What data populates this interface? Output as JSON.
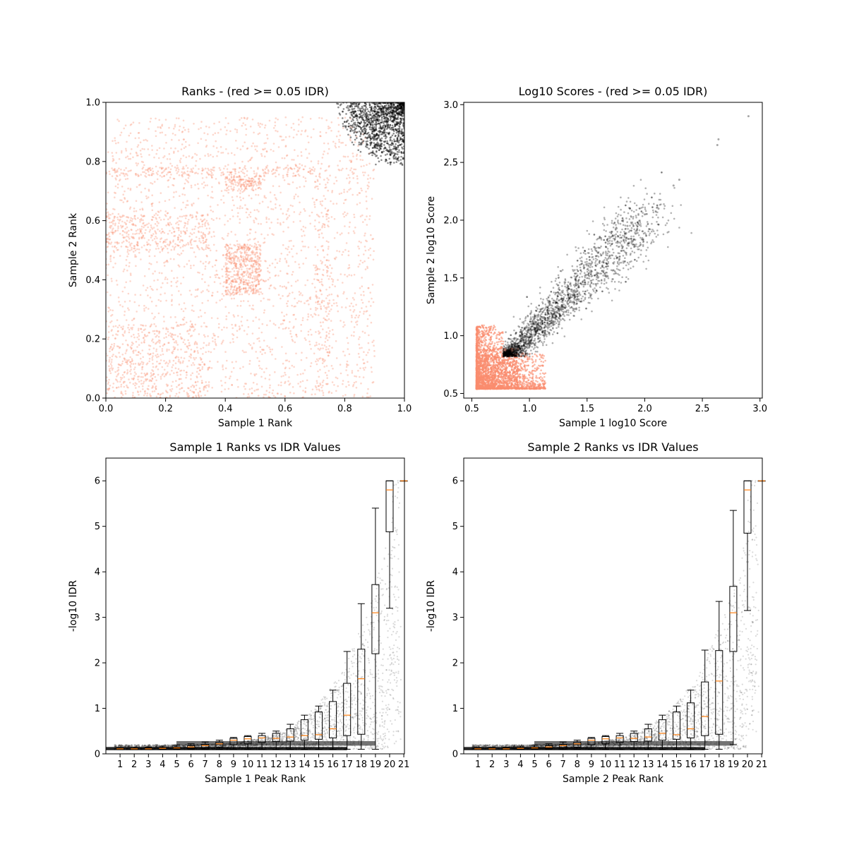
{
  "chart_data": [
    {
      "type": "scatter",
      "title": "Ranks - (red >= 0.05 IDR)",
      "xlabel": "Sample 1 Rank",
      "ylabel": "Sample 2 Rank",
      "xlim": [
        0,
        1
      ],
      "ylim": [
        0,
        1
      ],
      "xticks": [
        "0.0",
        "0.2",
        "0.4",
        "0.6",
        "0.8",
        "1.0"
      ],
      "yticks": [
        "0.0",
        "0.2",
        "0.4",
        "0.6",
        "0.8",
        "1.0"
      ],
      "grid": false,
      "colors": {
        "above_idr_threshold": "#fa8c6e",
        "below_idr_threshold": "#000000"
      },
      "series": [
        {
          "color": "#fa8c6e",
          "description_points": [
            [
              0.05,
              0.05
            ],
            [
              0.2,
              0.15
            ],
            [
              0.45,
              0.42
            ],
            [
              0.5,
              0.45
            ],
            [
              0.3,
              0.6
            ],
            [
              0.6,
              0.3
            ],
            [
              0.1,
              0.8
            ],
            [
              0.8,
              0.1
            ],
            [
              0.65,
              0.65
            ],
            [
              0.85,
              0.5
            ]
          ]
        },
        {
          "color": "#000000",
          "description_points": [
            [
              0.88,
              0.88
            ],
            [
              0.92,
              0.95
            ],
            [
              0.95,
              0.97
            ],
            [
              0.98,
              0.99
            ],
            [
              0.85,
              0.9
            ],
            [
              0.9,
              0.84
            ],
            [
              0.96,
              0.92
            ]
          ]
        }
      ]
    },
    {
      "type": "scatter",
      "title": "Log10 Scores - (red >= 0.05 IDR)",
      "xlabel": "Sample 1 log10 Score",
      "ylabel": "Sample 2 log10 Score",
      "xlim": [
        0.43,
        3.02
      ],
      "ylim": [
        0.46,
        3.02
      ],
      "xticks": [
        "0.5",
        "1.0",
        "1.5",
        "2.0",
        "2.5",
        "3.0"
      ],
      "yticks": [
        "0.5",
        "1.0",
        "1.5",
        "2.0",
        "2.5",
        "3.0"
      ],
      "grid": false,
      "colors": {
        "above_idr_threshold": "#fa8c6e",
        "below_idr_threshold": "#000000"
      },
      "series": [
        {
          "color": "#fa8c6e",
          "description_points": [
            [
              0.55,
              0.55
            ],
            [
              0.6,
              0.7
            ],
            [
              0.7,
              0.65
            ],
            [
              0.75,
              0.9
            ],
            [
              0.9,
              0.6
            ],
            [
              1.1,
              0.7
            ],
            [
              0.58,
              1.0
            ]
          ]
        },
        {
          "color": "#000000",
          "description_points": [
            [
              0.8,
              0.85
            ],
            [
              1.0,
              0.95
            ],
            [
              1.2,
              1.15
            ],
            [
              1.5,
              1.45
            ],
            [
              1.8,
              1.8
            ],
            [
              2.1,
              2.1
            ],
            [
              2.3,
              2.35
            ],
            [
              2.63,
              2.65
            ],
            [
              2.63,
              2.7
            ],
            [
              2.9,
              2.9
            ]
          ]
        }
      ]
    },
    {
      "type": "box",
      "title": "Sample 1 Ranks vs IDR Values",
      "xlabel": "Sample 1 Peak Rank",
      "ylabel": "-log10 IDR",
      "ylim": [
        0,
        6.5
      ],
      "categories": [
        "1",
        "2",
        "3",
        "4",
        "5",
        "6",
        "7",
        "8",
        "9",
        "10",
        "11",
        "12",
        "13",
        "14",
        "15",
        "16",
        "17",
        "18",
        "19",
        "20",
        "21"
      ],
      "yticks": [
        "0",
        "1",
        "2",
        "3",
        "4",
        "5",
        "6"
      ],
      "median_color": "#ff7f0e",
      "boxes": [
        {
          "q1": 0.1,
          "median": 0.11,
          "q3": 0.12,
          "whislo": 0.1,
          "whishi": 0.14
        },
        {
          "q1": 0.1,
          "median": 0.11,
          "q3": 0.12,
          "whislo": 0.1,
          "whishi": 0.14
        },
        {
          "q1": 0.1,
          "median": 0.11,
          "q3": 0.13,
          "whislo": 0.1,
          "whishi": 0.15
        },
        {
          "q1": 0.1,
          "median": 0.12,
          "q3": 0.14,
          "whislo": 0.1,
          "whishi": 0.17
        },
        {
          "q1": 0.11,
          "median": 0.13,
          "q3": 0.15,
          "whislo": 0.1,
          "whishi": 0.19
        },
        {
          "q1": 0.12,
          "median": 0.15,
          "q3": 0.18,
          "whislo": 0.1,
          "whishi": 0.22
        },
        {
          "q1": 0.13,
          "median": 0.18,
          "q3": 0.21,
          "whislo": 0.1,
          "whishi": 0.26
        },
        {
          "q1": 0.15,
          "median": 0.22,
          "q3": 0.26,
          "whislo": 0.1,
          "whishi": 0.3
        },
        {
          "q1": 0.2,
          "median": 0.3,
          "q3": 0.34,
          "whislo": 0.1,
          "whishi": 0.36
        },
        {
          "q1": 0.22,
          "median": 0.33,
          "q3": 0.38,
          "whislo": 0.1,
          "whishi": 0.4
        },
        {
          "q1": 0.25,
          "median": 0.35,
          "q3": 0.4,
          "whislo": 0.1,
          "whishi": 0.45
        },
        {
          "q1": 0.27,
          "median": 0.34,
          "q3": 0.45,
          "whislo": 0.1,
          "whishi": 0.5
        },
        {
          "q1": 0.28,
          "median": 0.37,
          "q3": 0.55,
          "whislo": 0.1,
          "whishi": 0.65
        },
        {
          "q1": 0.3,
          "median": 0.4,
          "q3": 0.75,
          "whislo": 0.1,
          "whishi": 0.85
        },
        {
          "q1": 0.32,
          "median": 0.42,
          "q3": 0.92,
          "whislo": 0.1,
          "whishi": 1.05
        },
        {
          "q1": 0.35,
          "median": 0.55,
          "q3": 1.15,
          "whislo": 0.1,
          "whishi": 1.4
        },
        {
          "q1": 0.4,
          "median": 0.85,
          "q3": 1.55,
          "whislo": 0.1,
          "whishi": 2.25
        },
        {
          "q1": 0.43,
          "median": 1.65,
          "q3": 2.3,
          "whislo": 0.1,
          "whishi": 3.3
        },
        {
          "q1": 2.2,
          "median": 3.1,
          "q3": 3.72,
          "whislo": 0.1,
          "whishi": 5.4
        },
        {
          "q1": 4.88,
          "median": 5.8,
          "q3": 6.0,
          "whislo": 3.2,
          "whishi": 6.0
        },
        {
          "q1": 6.0,
          "median": 6.0,
          "q3": 6.0,
          "whislo": 6.0,
          "whishi": 6.0
        }
      ]
    },
    {
      "type": "box",
      "title": "Sample 2 Ranks vs IDR Values",
      "xlabel": "Sample 2 Peak Rank",
      "ylabel": "-log10 IDR",
      "ylim": [
        0,
        6.5
      ],
      "categories": [
        "1",
        "2",
        "3",
        "4",
        "5",
        "6",
        "7",
        "8",
        "9",
        "10",
        "11",
        "12",
        "13",
        "14",
        "15",
        "16",
        "17",
        "18",
        "19",
        "20",
        "21"
      ],
      "yticks": [
        "0",
        "1",
        "2",
        "3",
        "4",
        "5",
        "6"
      ],
      "median_color": "#ff7f0e",
      "boxes": [
        {
          "q1": 0.1,
          "median": 0.11,
          "q3": 0.12,
          "whislo": 0.1,
          "whishi": 0.14
        },
        {
          "q1": 0.1,
          "median": 0.11,
          "q3": 0.12,
          "whislo": 0.1,
          "whishi": 0.14
        },
        {
          "q1": 0.1,
          "median": 0.11,
          "q3": 0.13,
          "whislo": 0.1,
          "whishi": 0.15
        },
        {
          "q1": 0.1,
          "median": 0.12,
          "q3": 0.14,
          "whislo": 0.1,
          "whishi": 0.17
        },
        {
          "q1": 0.11,
          "median": 0.13,
          "q3": 0.15,
          "whislo": 0.1,
          "whishi": 0.19
        },
        {
          "q1": 0.12,
          "median": 0.15,
          "q3": 0.18,
          "whislo": 0.1,
          "whishi": 0.22
        },
        {
          "q1": 0.13,
          "median": 0.18,
          "q3": 0.21,
          "whislo": 0.1,
          "whishi": 0.26
        },
        {
          "q1": 0.15,
          "median": 0.22,
          "q3": 0.26,
          "whislo": 0.1,
          "whishi": 0.3
        },
        {
          "q1": 0.2,
          "median": 0.3,
          "q3": 0.34,
          "whislo": 0.1,
          "whishi": 0.36
        },
        {
          "q1": 0.22,
          "median": 0.33,
          "q3": 0.38,
          "whislo": 0.1,
          "whishi": 0.4
        },
        {
          "q1": 0.25,
          "median": 0.35,
          "q3": 0.4,
          "whislo": 0.1,
          "whishi": 0.45
        },
        {
          "q1": 0.27,
          "median": 0.34,
          "q3": 0.45,
          "whislo": 0.1,
          "whishi": 0.5
        },
        {
          "q1": 0.28,
          "median": 0.37,
          "q3": 0.55,
          "whislo": 0.1,
          "whishi": 0.65
        },
        {
          "q1": 0.3,
          "median": 0.45,
          "q3": 0.75,
          "whislo": 0.1,
          "whishi": 0.85
        },
        {
          "q1": 0.32,
          "median": 0.42,
          "q3": 0.92,
          "whislo": 0.1,
          "whishi": 1.05
        },
        {
          "q1": 0.35,
          "median": 0.55,
          "q3": 1.12,
          "whislo": 0.1,
          "whishi": 1.4
        },
        {
          "q1": 0.4,
          "median": 0.82,
          "q3": 1.58,
          "whislo": 0.1,
          "whishi": 2.28
        },
        {
          "q1": 0.43,
          "median": 1.6,
          "q3": 2.27,
          "whislo": 0.1,
          "whishi": 3.35
        },
        {
          "q1": 2.25,
          "median": 3.1,
          "q3": 3.68,
          "whislo": 0.2,
          "whishi": 5.35
        },
        {
          "q1": 4.85,
          "median": 5.8,
          "q3": 6.0,
          "whislo": 3.15,
          "whishi": 6.0
        },
        {
          "q1": 6.0,
          "median": 6.0,
          "q3": 6.0,
          "whislo": 6.0,
          "whishi": 6.0
        }
      ]
    }
  ]
}
